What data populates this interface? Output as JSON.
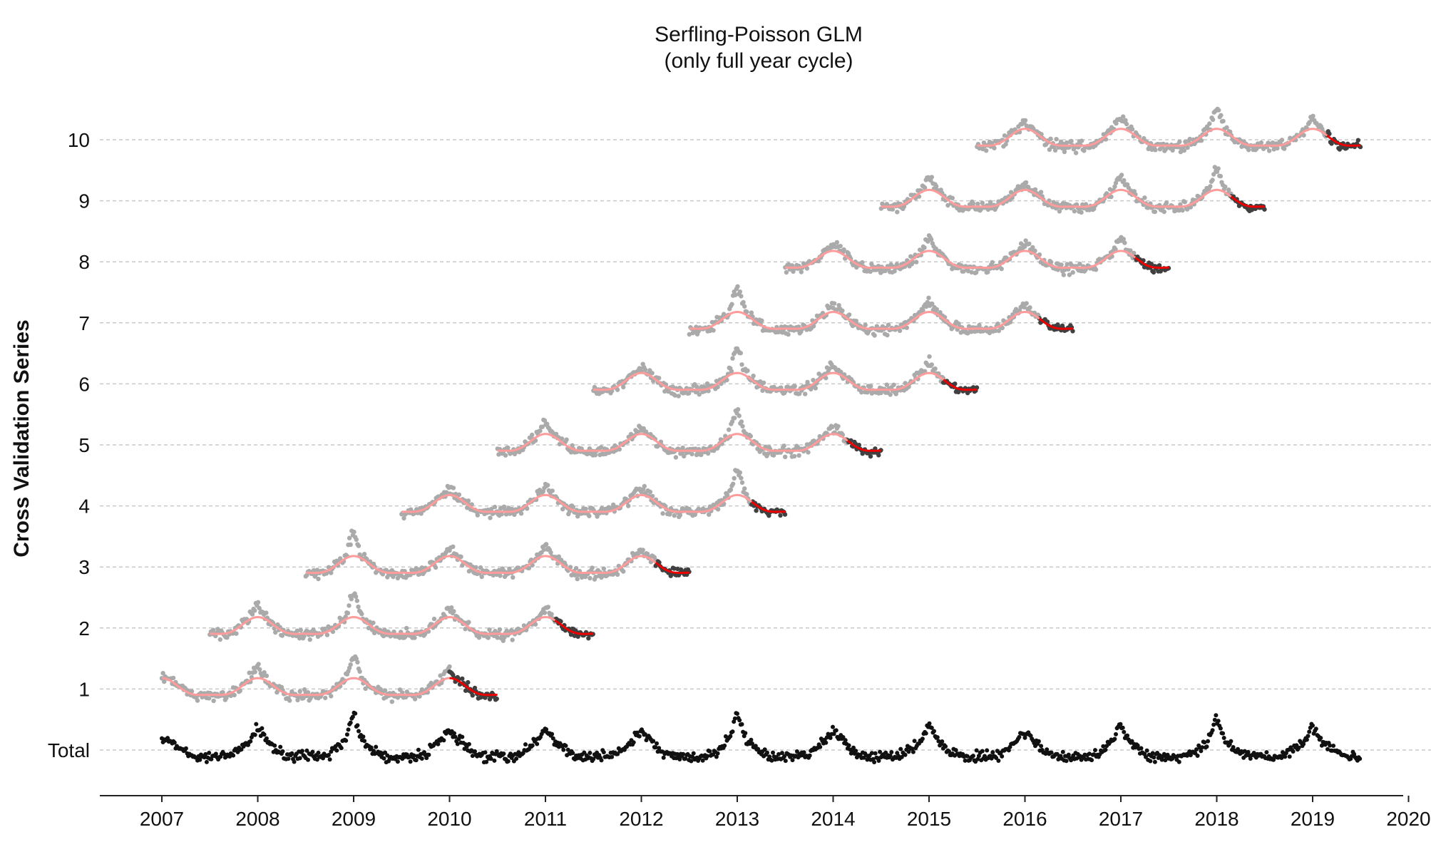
{
  "chart_data": {
    "type": "scatter",
    "title": "Serfling-Poisson GLM",
    "subtitle": "(only full year cycle)",
    "xlabel": "",
    "ylabel": "Cross Validation Series",
    "xlim": [
      2006.6,
      2020.0
    ],
    "x_ticks": [
      "2007",
      "2008",
      "2009",
      "2010",
      "2011",
      "2012",
      "2013",
      "2014",
      "2015",
      "2016",
      "2017",
      "2018",
      "2019",
      "2020"
    ],
    "y_categories": [
      "Total",
      "1",
      "2",
      "3",
      "4",
      "5",
      "6",
      "7",
      "8",
      "9",
      "10"
    ],
    "grid": "horizontal dashed",
    "colors": {
      "total": "#111111",
      "training": "#aaaaaa",
      "test": "#404040",
      "fit": "#ff9b9b",
      "forecast": "#ee0000",
      "grid": "#c8c8c8",
      "axis": "#222222"
    },
    "series_ranges": [
      {
        "series": "Total",
        "start": 2007.0,
        "end": 2019.5
      },
      {
        "series": "1",
        "train_start": 2007.0,
        "train_end": 2010.0,
        "test_end": 2010.5
      },
      {
        "series": "2",
        "train_start": 2007.5,
        "train_end": 2011.1,
        "test_end": 2011.5
      },
      {
        "series": "3",
        "train_start": 2008.5,
        "train_end": 2012.15,
        "test_end": 2012.5
      },
      {
        "series": "4",
        "train_start": 2009.5,
        "train_end": 2013.15,
        "test_end": 2013.5
      },
      {
        "series": "5",
        "train_start": 2010.5,
        "train_end": 2014.15,
        "test_end": 2014.5
      },
      {
        "series": "6",
        "train_start": 2011.5,
        "train_end": 2015.15,
        "test_end": 2015.5
      },
      {
        "series": "7",
        "train_start": 2012.5,
        "train_end": 2016.15,
        "test_end": 2016.5
      },
      {
        "series": "8",
        "train_start": 2013.5,
        "train_end": 2017.15,
        "test_end": 2017.5
      },
      {
        "series": "9",
        "train_start": 2014.5,
        "train_end": 2018.15,
        "test_end": 2018.5
      },
      {
        "series": "10",
        "train_start": 2015.5,
        "train_end": 2019.15,
        "test_end": 2019.5
      }
    ]
  }
}
